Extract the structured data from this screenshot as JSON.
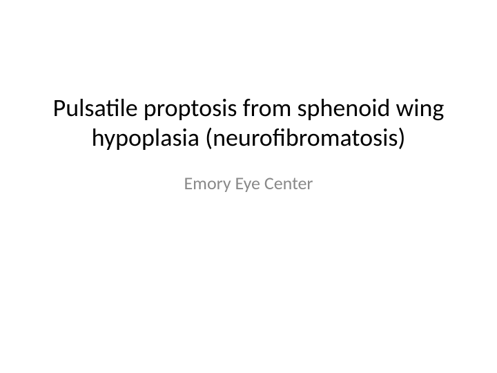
{
  "slide": {
    "title": "Pulsatile proptosis from sphenoid wing hypoplasia (neurofibromatosis)",
    "subtitle": "Emory Eye Center",
    "background_color": "#ffffff",
    "title_color": "#000000",
    "title_fontsize": 36,
    "subtitle_color": "#898989",
    "subtitle_fontsize": 26
  }
}
